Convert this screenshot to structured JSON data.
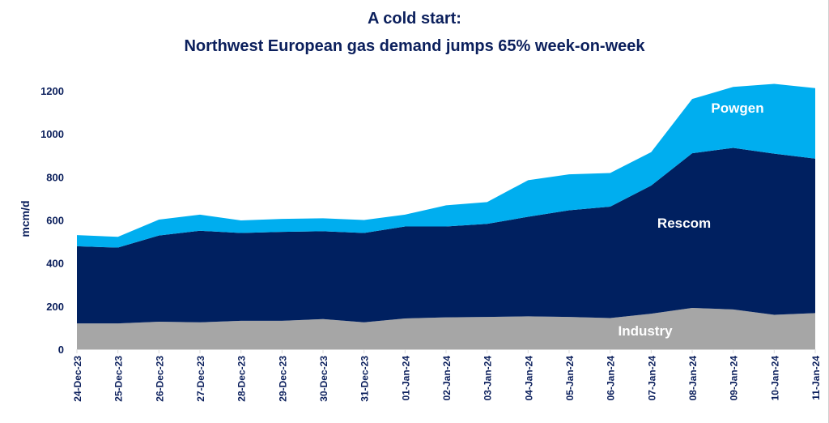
{
  "chart_data": {
    "type": "area",
    "stacked": true,
    "title": "A cold start:",
    "subtitle": "Northwest European gas demand jumps 65% week-on-week",
    "xlabel": "",
    "ylabel": "mcm/d",
    "ylim": [
      0,
      1200
    ],
    "yticks": [
      0,
      200,
      400,
      600,
      800,
      1000,
      1200
    ],
    "grid": false,
    "legend": "inline labels",
    "categories": [
      "24-Dec-23",
      "25-Dec-23",
      "26-Dec-23",
      "27-Dec-23",
      "28-Dec-23",
      "29-Dec-23",
      "30-Dec-23",
      "31-Dec-23",
      "01-Jan-24",
      "02-Jan-24",
      "03-Jan-24",
      "04-Jan-24",
      "05-Jan-24",
      "06-Jan-24",
      "07-Jan-24",
      "08-Jan-24",
      "09-Jan-24",
      "10-Jan-24",
      "11-Jan-24"
    ],
    "series": [
      {
        "name": "Industry",
        "color": "#A6A6A6",
        "values": [
          120,
          120,
          128,
          125,
          132,
          132,
          140,
          125,
          143,
          148,
          150,
          153,
          150,
          145,
          165,
          192,
          185,
          160,
          168
        ]
      },
      {
        "name": "Rescom",
        "color": "#002060",
        "values": [
          358,
          352,
          400,
          425,
          408,
          413,
          408,
          415,
          427,
          422,
          432,
          462,
          495,
          517,
          595,
          718,
          750,
          748,
          717
        ]
      },
      {
        "name": "Powgen",
        "color": "#00AEEF",
        "values": [
          52,
          50,
          74,
          75,
          58,
          60,
          60,
          60,
          55,
          98,
          101,
          170,
          167,
          156,
          155,
          252,
          283,
          324,
          327
        ]
      }
    ]
  }
}
